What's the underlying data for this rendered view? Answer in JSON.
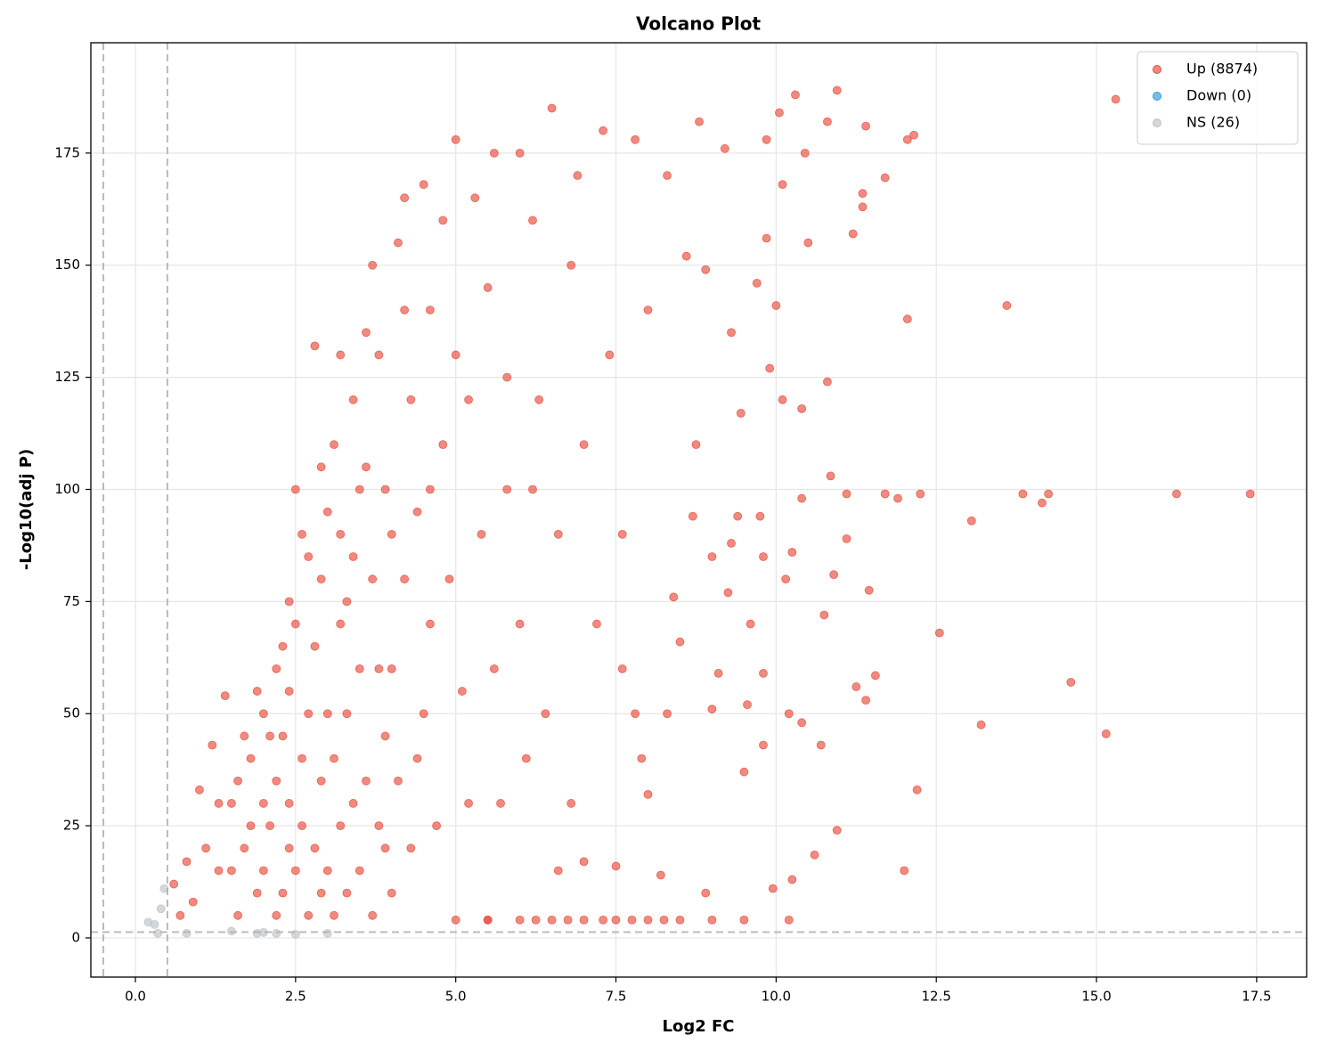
{
  "chart_data": {
    "type": "scatter",
    "title": "Volcano Plot",
    "x_label": "Log2 FC",
    "y_label": "-Log10(adj P)",
    "xlim": [
      -0.695,
      18.28
    ],
    "ylim": [
      -8.74,
      199.6
    ],
    "xticks": [
      {
        "value": 0,
        "label": "0.0"
      },
      2.5,
      {
        "value": 5,
        "label": "5.0"
      },
      7.5,
      {
        "value": 10,
        "label": "10.0"
      },
      12.5,
      {
        "value": 15,
        "label": "15.0"
      },
      17.5
    ],
    "yticks": [
      0,
      25,
      50,
      75,
      100,
      125,
      150,
      175
    ],
    "grid": true,
    "legend": "upper right",
    "vlines": [
      -0.5,
      0.5
    ],
    "hline": 1.3,
    "series": [
      {
        "name": "Up (8874)",
        "color": "#e74c3c",
        "x": [
          17.4,
          16.25,
          15.3,
          15.15,
          14.6,
          14.25,
          14.15,
          13.85,
          13.6,
          13.2,
          13.05,
          12.55,
          12.2,
          12.25,
          12.15,
          12.05,
          12.05,
          12.0,
          11.9,
          11.7,
          11.7,
          11.55,
          11.45,
          11.4,
          11.4,
          11.35,
          11.35,
          11.2,
          11.25,
          11.1,
          11.1,
          10.95,
          10.95,
          10.9,
          10.85,
          10.8,
          10.8,
          10.75,
          10.7,
          10.6,
          10.5,
          10.45,
          10.4,
          10.4,
          10.4,
          10.3,
          10.25,
          10.25,
          10.2,
          10.2,
          10.15,
          10.1,
          10.1,
          10.05,
          10.0,
          9.95,
          9.9,
          9.85,
          9.85,
          9.8,
          9.8,
          9.8,
          9.75,
          9.7,
          9.6,
          9.55,
          9.5,
          9.45,
          9.4,
          9.3,
          9.3,
          9.25,
          9.2,
          9.1,
          9.0,
          9.0,
          8.9,
          8.9,
          8.8,
          8.75,
          8.7,
          8.6,
          8.5,
          8.4,
          8.3,
          8.2,
          8.0,
          7.9,
          7.6,
          7.5,
          7.3,
          7.0,
          6.8,
          6.6,
          6.5,
          6.3,
          6.1,
          6.0,
          5.8,
          5.6,
          5.5,
          5.3,
          5.2,
          5.0,
          5.0,
          4.8,
          4.6,
          4.5,
          4.4,
          4.2,
          4.0,
          3.9,
          3.8,
          3.7,
          3.5,
          3.4,
          3.3,
          3.2,
          3.0,
          2.9,
          2.8,
          2.7,
          2.6,
          2.5,
          2.4,
          2.3,
          2.2,
          2.1,
          2.0,
          1.9,
          1.8,
          1.7,
          1.6,
          1.5,
          1.4,
          1.3,
          1.2,
          1.0,
          0.9,
          0.8,
          0.7,
          0.6,
          5.5,
          6.0,
          6.5,
          7.0,
          7.5,
          8.0,
          8.5,
          9.0,
          9.5,
          6.25,
          6.75,
          7.75,
          8.25,
          2.0,
          2.0,
          2.1,
          2.2,
          2.2,
          2.3,
          2.3,
          2.4,
          2.4,
          2.5,
          2.5,
          2.6,
          2.6,
          2.7,
          2.7,
          2.8,
          2.8,
          2.9,
          2.9,
          3.0,
          3.0,
          3.1,
          3.1,
          3.1,
          3.2,
          3.2,
          3.3,
          3.3,
          3.4,
          3.4,
          3.5,
          3.5,
          3.6,
          3.6,
          3.7,
          3.7,
          3.8,
          3.8,
          3.9,
          3.9,
          4.0,
          4.0,
          4.1,
          4.1,
          4.2,
          4.3,
          4.3,
          4.4,
          4.5,
          4.6,
          4.7,
          4.8,
          4.9,
          5.1,
          5.2,
          5.4,
          5.5,
          5.7,
          5.8,
          6.0,
          6.2,
          6.4,
          6.6,
          6.8,
          7.0,
          7.2,
          7.4,
          7.6,
          7.8,
          8.0,
          1.7,
          1.8,
          1.9,
          1.6,
          1.5,
          1.3,
          1.1,
          2.4,
          2.9,
          3.2,
          3.6,
          4.2,
          4.6,
          5.0,
          5.6,
          6.2,
          6.9,
          7.3,
          7.8,
          8.3
        ],
        "values": [
          99,
          99,
          187,
          45.5,
          57,
          99,
          97,
          99,
          141,
          47.5,
          93,
          68,
          33,
          99,
          179,
          178,
          138,
          15,
          98,
          99,
          169.5,
          58.5,
          77.5,
          53,
          181,
          166,
          163,
          157,
          56,
          89,
          99,
          189,
          24,
          81,
          103,
          124,
          182,
          72,
          43,
          18.5,
          155,
          175,
          98,
          118,
          48,
          188,
          86,
          13,
          4,
          50,
          80,
          120,
          168,
          184,
          141,
          11,
          127,
          156,
          178,
          43,
          59,
          85,
          94,
          146,
          70,
          52,
          37,
          117,
          94,
          88,
          135,
          77,
          176,
          59,
          51,
          85,
          149,
          10,
          182,
          110,
          94,
          152,
          66,
          76,
          50,
          14,
          32,
          40,
          60,
          16,
          4,
          17,
          150,
          15,
          185,
          120,
          40,
          175,
          100,
          60,
          4,
          165,
          30,
          178,
          4,
          110,
          70,
          168,
          40,
          140,
          90,
          20,
          60,
          150,
          100,
          30,
          75,
          130,
          50,
          10,
          132,
          85,
          40,
          100,
          20,
          65,
          5,
          45,
          30,
          10,
          40,
          20,
          5,
          30,
          54,
          15,
          43,
          33,
          8,
          17,
          5,
          12,
          4,
          4,
          4,
          4,
          4,
          4,
          4,
          4,
          4,
          4,
          4,
          4,
          4,
          15,
          50,
          25,
          35,
          60,
          10,
          45,
          30,
          55,
          15,
          70,
          25,
          90,
          5,
          50,
          20,
          65,
          35,
          80,
          15,
          95,
          5,
          40,
          110,
          25,
          70,
          10,
          50,
          85,
          120,
          15,
          60,
          35,
          105,
          5,
          80,
          25,
          130,
          45,
          100,
          10,
          60,
          35,
          155,
          80,
          20,
          120,
          95,
          50,
          140,
          25,
          160,
          80,
          55,
          120,
          90,
          145,
          30,
          125,
          70,
          100,
          50,
          90,
          30,
          110,
          70,
          130,
          90,
          50,
          140,
          45,
          25,
          55,
          35,
          15,
          30,
          20,
          75,
          105,
          90,
          135,
          165,
          100,
          130,
          175,
          160,
          170,
          180,
          178,
          170
        ]
      },
      {
        "name": "Down (0)",
        "color": "#3498db",
        "x": [],
        "values": []
      },
      {
        "name": "NS (26)",
        "color": "#bdc3c7",
        "x": [
          0.2,
          0.35,
          0.4,
          0.45,
          0.8,
          1.5,
          1.9,
          2.0,
          2.5,
          3.0,
          0.3,
          2.2
        ],
        "values": [
          3.5,
          1,
          6.5,
          11,
          1,
          1.5,
          1,
          1.2,
          0.8,
          1,
          3,
          1
        ]
      }
    ]
  }
}
